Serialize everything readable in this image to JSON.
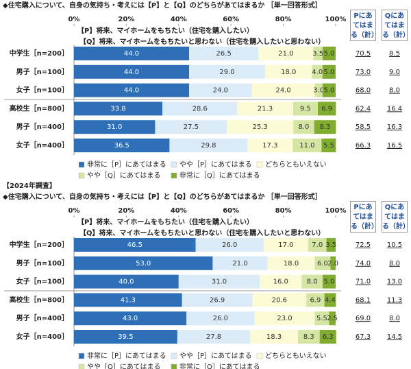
{
  "chart_data": [
    {
      "type": "stacked-bar-horizontal",
      "title": "◆住宅購入について、自身の気持ち・考えには【P】と【Q】のどちらがあてはまるか ［単一回答形式］",
      "subtitles": [
        "【P】将来、マイホームをもちたい（住宅を購入したい）",
        "【Q】将来、マイホームをもちたいと思わない（住宅を購入したいと思わない）"
      ],
      "categories": [
        "中学生［n=200］",
        "男子［n=100］",
        "女子［n=100］",
        "高校生［n=800］",
        "男子［n=400］",
        "女子［n=400］"
      ],
      "xlim": [
        0,
        100
      ],
      "xticks": [
        {
          "value": 0,
          "label": "0%"
        },
        {
          "value": 20,
          "label": "20%"
        },
        {
          "value": 40,
          "label": "40%"
        },
        {
          "value": 60,
          "label": "60%"
        },
        {
          "value": 80,
          "label": "80%"
        },
        {
          "value": 100,
          "label": "100%"
        }
      ],
      "series": [
        {
          "name": "非常に［P］にあてはまる",
          "color": "#2e6fb7",
          "values": [
            44.0,
            44.0,
            44.0,
            33.8,
            31.0,
            36.5
          ],
          "value_labels": [
            "44.0",
            "44.0",
            "44.0",
            "33.8",
            "31.0",
            "36.5"
          ]
        },
        {
          "name": "やや［P］にあてはまる",
          "color": "#dcebf8",
          "values": [
            26.5,
            29.0,
            24.0,
            28.6,
            27.5,
            29.8
          ],
          "value_labels": [
            "26.5",
            "29.0",
            "24.0",
            "28.6",
            "27.5",
            "29.8"
          ]
        },
        {
          "name": "どちらともいえない",
          "color": "#fdfad6",
          "values": [
            21.0,
            18.0,
            24.0,
            21.3,
            25.3,
            17.3
          ],
          "value_labels": [
            "21.0",
            "18.0",
            "24.0",
            "21.3",
            "25.3",
            "17.3"
          ]
        },
        {
          "name": "やや［Q］にあてはまる",
          "color": "#d5e5a4",
          "values": [
            3.5,
            4.0,
            3.0,
            9.5,
            8.0,
            11.0
          ],
          "value_labels": [
            "3.5",
            "4.0",
            "3.0",
            "9.5",
            "8.0",
            "11.0"
          ]
        },
        {
          "name": "非常に［Q］にあてはまる",
          "color": "#80ad2f",
          "values": [
            5.0,
            5.0,
            5.0,
            6.9,
            8.3,
            5.5
          ],
          "value_labels": [
            "5.0",
            "5.0",
            "5.0",
            "6.9",
            "8.3",
            "5.5"
          ]
        }
      ],
      "summary": [
        {
          "name": "Pにあてはまる（計）",
          "values": [
            70.5,
            73.0,
            68.0,
            62.4,
            58.5,
            66.3
          ],
          "value_labels": [
            "70.5",
            "73.0",
            "68.0",
            "62.4",
            "58.5",
            "66.3"
          ]
        },
        {
          "name": "Qにあてはまる（計）",
          "values": [
            8.5,
            9.0,
            8.0,
            16.4,
            16.3,
            16.5
          ],
          "value_labels": [
            "8.5",
            "9.0",
            "8.0",
            "16.4",
            "16.3",
            "16.5"
          ]
        }
      ]
    },
    {
      "type": "stacked-bar-horizontal",
      "caption": "【2024年調査】",
      "title": "◆住宅購入について、自身の気持ち・考えには【P】と【Q】のどちらがあてはまるか ［単一回答形式］",
      "subtitles": [
        "【P】将来、マイホームをもちたい（住宅を購入したい）",
        "【Q】将来、マイホームをもちたいと思わない（住宅を購入したいと思わない）"
      ],
      "categories": [
        "中学生［n=200］",
        "男子［n=100］",
        "女子［n=100］",
        "高校生［n=800］",
        "男子［n=400］",
        "女子［n=400］"
      ],
      "xlim": [
        0,
        100
      ],
      "xticks": [
        {
          "value": 0,
          "label": "0%"
        },
        {
          "value": 20,
          "label": "20%"
        },
        {
          "value": 40,
          "label": "40%"
        },
        {
          "value": 60,
          "label": "60%"
        },
        {
          "value": 80,
          "label": "80%"
        },
        {
          "value": 100,
          "label": "100%"
        }
      ],
      "series": [
        {
          "name": "非常に［P］にあてはまる",
          "color": "#2e6fb7",
          "values": [
            46.5,
            53.0,
            40.0,
            41.3,
            43.0,
            39.5
          ],
          "value_labels": [
            "46.5",
            "53.0",
            "40.0",
            "41.3",
            "43.0",
            "39.5"
          ]
        },
        {
          "name": "やや［P］にあてはまる",
          "color": "#dcebf8",
          "values": [
            26.0,
            21.0,
            31.0,
            26.9,
            26.0,
            27.8
          ],
          "value_labels": [
            "26.0",
            "21.0",
            "31.0",
            "26.9",
            "26.0",
            "27.8"
          ]
        },
        {
          "name": "どちらともいえない",
          "color": "#fdfad6",
          "values": [
            17.0,
            18.0,
            16.0,
            20.6,
            23.0,
            18.3
          ],
          "value_labels": [
            "17.0",
            "18.0",
            "16.0",
            "20.6",
            "23.0",
            "18.3"
          ]
        },
        {
          "name": "やや［Q］にあてはまる",
          "color": "#d5e5a4",
          "values": [
            7.0,
            6.0,
            8.0,
            6.9,
            5.5,
            8.3
          ],
          "value_labels": [
            "7.0",
            "6.0",
            "8.0",
            "6.9",
            "5.5",
            "8.3"
          ]
        },
        {
          "name": "非常に［Q］にあてはまる",
          "color": "#80ad2f",
          "values": [
            3.5,
            2.0,
            5.0,
            4.4,
            2.5,
            6.3
          ],
          "value_labels": [
            "3.5",
            "2.0",
            "5.0",
            "4.4",
            "2.5",
            "6.3"
          ]
        }
      ],
      "summary": [
        {
          "name": "Pにあてはまる（計）",
          "values": [
            72.5,
            74.0,
            71.0,
            68.1,
            69.0,
            67.3
          ],
          "value_labels": [
            "72.5",
            "74.0",
            "71.0",
            "68.1",
            "69.0",
            "67.3"
          ]
        },
        {
          "name": "Qにあてはまる（計）",
          "values": [
            10.5,
            8.0,
            13.0,
            11.3,
            8.0,
            14.5
          ],
          "value_labels": [
            "10.5",
            "8.0",
            "13.0",
            "11.3",
            "8.0",
            "14.5"
          ]
        }
      ]
    }
  ]
}
